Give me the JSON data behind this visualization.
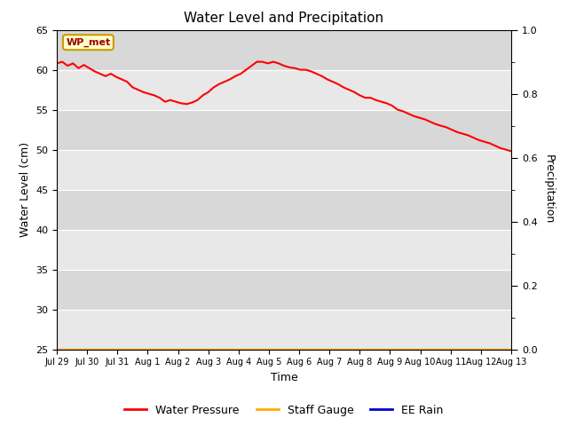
{
  "title": "Water Level and Precipitation",
  "xlabel": "Time",
  "ylabel_left": "Water Level (cm)",
  "ylabel_right": "Precipitation",
  "annotation_text": "WP_met",
  "annotation_bg": "#ffffcc",
  "annotation_border": "#cc9900",
  "annotation_text_color": "#990000",
  "ylim_left": [
    25,
    65
  ],
  "ylim_right": [
    0.0,
    1.0
  ],
  "yticks_left": [
    25,
    30,
    35,
    40,
    45,
    50,
    55,
    60,
    65
  ],
  "yticks_right": [
    0.0,
    0.2,
    0.4,
    0.6,
    0.8,
    1.0
  ],
  "bg_color_light": "#e8e8e8",
  "bg_color_dark": "#d8d8d8",
  "fig_bg_color": "#ffffff",
  "line_color_water": "#ff0000",
  "line_color_staff": "#ffaa00",
  "line_color_rain": "#0000cc",
  "line_width": 1.5,
  "legend_labels": [
    "Water Pressure",
    "Staff Gauge",
    "EE Rain"
  ],
  "tick_labels": [
    "Jul 29",
    "Jul 30",
    "Jul 31",
    "Aug 1",
    "Aug 2",
    "Aug 3",
    "Aug 4",
    "Aug 5",
    "Aug 6",
    "Aug 7",
    "Aug 8",
    "Aug 9",
    "Aug 10",
    "Aug 11",
    "Aug 12",
    "Aug 13"
  ],
  "water_pressure": [
    60.8,
    61.0,
    60.5,
    60.8,
    60.2,
    60.6,
    60.2,
    59.8,
    59.5,
    59.2,
    59.5,
    59.1,
    58.8,
    58.5,
    57.8,
    57.5,
    57.2,
    57.0,
    56.8,
    56.5,
    56.0,
    56.2,
    56.0,
    55.8,
    55.7,
    55.9,
    56.2,
    56.8,
    57.2,
    57.8,
    58.2,
    58.5,
    58.8,
    59.2,
    59.5,
    60.0,
    60.5,
    61.0,
    61.0,
    60.8,
    61.0,
    60.8,
    60.5,
    60.3,
    60.2,
    60.0,
    60.0,
    59.8,
    59.5,
    59.2,
    58.8,
    58.5,
    58.2,
    57.8,
    57.5,
    57.2,
    56.8,
    56.5,
    56.5,
    56.2,
    56.0,
    55.8,
    55.5,
    55.0,
    54.8,
    54.5,
    54.2,
    54.0,
    53.8,
    53.5,
    53.2,
    53.0,
    52.8,
    52.5,
    52.2,
    52.0,
    51.8,
    51.5,
    51.2,
    51.0,
    50.8,
    50.5,
    50.2,
    50.0,
    49.8
  ]
}
